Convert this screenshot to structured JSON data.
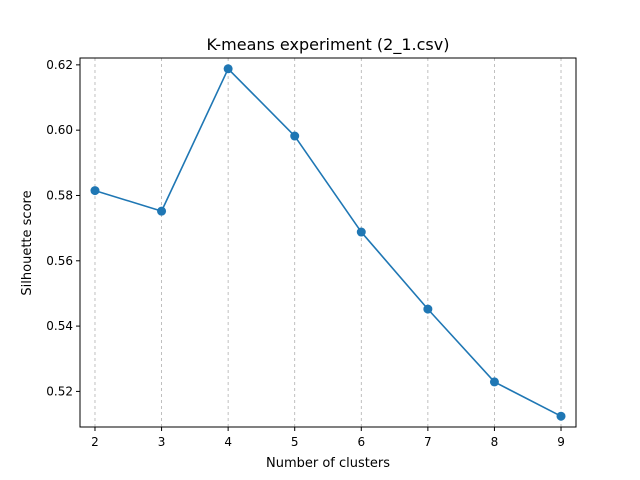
{
  "chart_data": {
    "type": "line",
    "title": "K-means experiment (2_1.csv)",
    "xlabel": "Number of clusters",
    "ylabel": "Silhouette score",
    "x": [
      2,
      3,
      4,
      5,
      6,
      7,
      8,
      9
    ],
    "series": [
      {
        "values": [
          0.5815,
          0.5752,
          0.6188,
          0.5982,
          0.5688,
          0.5452,
          0.5229,
          0.5124
        ],
        "color": "#1f77b4",
        "marker": "circle"
      }
    ],
    "xlim": [
      1.775,
      9.225
    ],
    "ylim": [
      0.5091,
      0.6221
    ],
    "xticks": [
      2,
      3,
      4,
      5,
      6,
      7,
      8,
      9
    ],
    "yticks": [
      0.52,
      0.54,
      0.56,
      0.58,
      0.6,
      0.62
    ],
    "ytick_labels": [
      "0.52",
      "0.54",
      "0.56",
      "0.58",
      "0.60",
      "0.62"
    ],
    "grid": "vertical dashed"
  }
}
